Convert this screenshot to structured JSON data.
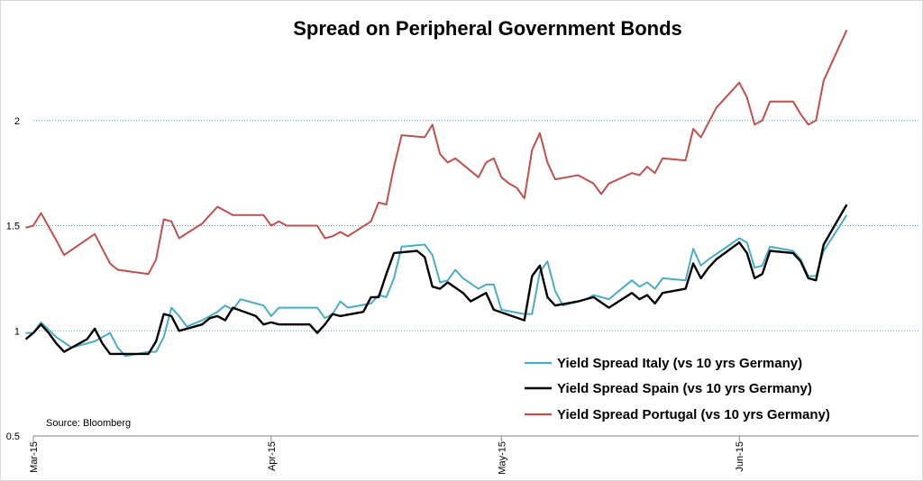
{
  "chart_data": {
    "type": "line",
    "title": "Spread on Peripheral Government Bonds",
    "source": "Source: Bloomberg",
    "ylim": [
      0.5,
      2.5
    ],
    "yticks": [
      {
        "value": 0.5,
        "label": "0.5"
      },
      {
        "value": 1,
        "label": "1"
      },
      {
        "value": 1.5,
        "label": "1.5"
      },
      {
        "value": 2,
        "label": "2"
      }
    ],
    "grid": "horizontal dotted at 1, 1.5, 2",
    "legend_position": "bottom-right",
    "xlim": [
      "2015-03-01",
      "2015-06-24"
    ],
    "xticks": [
      {
        "date": "2015-03-01",
        "label": "Mar-15"
      },
      {
        "date": "2015-04-01",
        "label": "Apr-15"
      },
      {
        "date": "2015-05-01",
        "label": "May-15"
      },
      {
        "date": "2015-06-01",
        "label": "Jun-15"
      }
    ],
    "series": [
      {
        "name": "Yield Spread Italy (vs 10 yrs Germany)",
        "color": "#4bacc6",
        "points": [
          [
            "2015-02-28",
            0.99
          ],
          [
            "2015-03-01",
            0.99
          ],
          [
            "2015-03-02",
            1.04
          ],
          [
            "2015-03-04",
            0.97
          ],
          [
            "2015-03-06",
            0.92
          ],
          [
            "2015-03-09",
            0.95
          ],
          [
            "2015-03-10",
            0.97
          ],
          [
            "2015-03-11",
            0.99
          ],
          [
            "2015-03-12",
            0.92
          ],
          [
            "2015-03-13",
            0.88
          ],
          [
            "2015-03-16",
            0.9
          ],
          [
            "2015-03-17",
            0.9
          ],
          [
            "2015-03-18",
            0.97
          ],
          [
            "2015-03-19",
            1.11
          ],
          [
            "2015-03-20",
            1.07
          ],
          [
            "2015-03-21",
            1.02
          ],
          [
            "2015-03-23",
            1.05
          ],
          [
            "2015-03-24",
            1.07
          ],
          [
            "2015-03-25",
            1.09
          ],
          [
            "2015-03-26",
            1.12
          ],
          [
            "2015-03-27",
            1.1
          ],
          [
            "2015-03-28",
            1.15
          ],
          [
            "2015-03-30",
            1.13
          ],
          [
            "2015-03-31",
            1.12
          ],
          [
            "2015-04-01",
            1.07
          ],
          [
            "2015-04-02",
            1.11
          ],
          [
            "2015-04-03",
            1.11
          ],
          [
            "2015-04-06",
            1.11
          ],
          [
            "2015-04-07",
            1.11
          ],
          [
            "2015-04-08",
            1.06
          ],
          [
            "2015-04-09",
            1.08
          ],
          [
            "2015-04-10",
            1.14
          ],
          [
            "2015-04-11",
            1.11
          ],
          [
            "2015-04-14",
            1.13
          ],
          [
            "2015-04-15",
            1.17
          ],
          [
            "2015-04-16",
            1.16
          ],
          [
            "2015-04-17",
            1.25
          ],
          [
            "2015-04-18",
            1.4
          ],
          [
            "2015-04-21",
            1.41
          ],
          [
            "2015-04-22",
            1.36
          ],
          [
            "2015-04-23",
            1.23
          ],
          [
            "2015-04-24",
            1.24
          ],
          [
            "2015-04-25",
            1.29
          ],
          [
            "2015-04-26",
            1.25
          ],
          [
            "2015-04-28",
            1.2
          ],
          [
            "2015-04-29",
            1.22
          ],
          [
            "2015-04-30",
            1.22
          ],
          [
            "2015-05-01",
            1.1
          ],
          [
            "2015-05-04",
            1.08
          ],
          [
            "2015-05-05",
            1.08
          ],
          [
            "2015-05-06",
            1.28
          ],
          [
            "2015-05-07",
            1.33
          ],
          [
            "2015-05-08",
            1.19
          ],
          [
            "2015-05-09",
            1.12
          ],
          [
            "2015-05-12",
            1.15
          ],
          [
            "2015-05-13",
            1.17
          ],
          [
            "2015-05-14",
            1.16
          ],
          [
            "2015-05-15",
            1.15
          ],
          [
            "2015-05-18",
            1.24
          ],
          [
            "2015-05-19",
            1.21
          ],
          [
            "2015-05-20",
            1.23
          ],
          [
            "2015-05-21",
            1.2
          ],
          [
            "2015-05-22",
            1.25
          ],
          [
            "2015-05-25",
            1.24
          ],
          [
            "2015-05-26",
            1.39
          ],
          [
            "2015-05-27",
            1.31
          ],
          [
            "2015-05-28",
            1.34
          ],
          [
            "2015-05-30",
            1.39
          ],
          [
            "2015-06-01",
            1.44
          ],
          [
            "2015-06-02",
            1.42
          ],
          [
            "2015-06-03",
            1.3
          ],
          [
            "2015-06-04",
            1.31
          ],
          [
            "2015-06-05",
            1.4
          ],
          [
            "2015-06-08",
            1.38
          ],
          [
            "2015-06-09",
            1.34
          ],
          [
            "2015-06-10",
            1.26
          ],
          [
            "2015-06-11",
            1.26
          ],
          [
            "2015-06-12",
            1.38
          ],
          [
            "2015-06-15",
            1.55
          ]
        ]
      },
      {
        "name": "Yield Spread Spain (vs 10 yrs Germany)",
        "color": "#000000",
        "points": [
          [
            "2015-02-28",
            0.96
          ],
          [
            "2015-03-01",
            0.99
          ],
          [
            "2015-03-02",
            1.03
          ],
          [
            "2015-03-03",
            0.99
          ],
          [
            "2015-03-04",
            0.94
          ],
          [
            "2015-03-05",
            0.9
          ],
          [
            "2015-03-08",
            0.96
          ],
          [
            "2015-03-09",
            1.01
          ],
          [
            "2015-03-10",
            0.94
          ],
          [
            "2015-03-11",
            0.89
          ],
          [
            "2015-03-16",
            0.89
          ],
          [
            "2015-03-17",
            0.95
          ],
          [
            "2015-03-18",
            1.08
          ],
          [
            "2015-03-19",
            1.07
          ],
          [
            "2015-03-20",
            1.0
          ],
          [
            "2015-03-23",
            1.03
          ],
          [
            "2015-03-24",
            1.06
          ],
          [
            "2015-03-25",
            1.07
          ],
          [
            "2015-03-26",
            1.05
          ],
          [
            "2015-03-27",
            1.11
          ],
          [
            "2015-03-30",
            1.07
          ],
          [
            "2015-03-31",
            1.03
          ],
          [
            "2015-04-01",
            1.04
          ],
          [
            "2015-04-02",
            1.03
          ],
          [
            "2015-04-06",
            1.03
          ],
          [
            "2015-04-07",
            0.99
          ],
          [
            "2015-04-08",
            1.03
          ],
          [
            "2015-04-09",
            1.08
          ],
          [
            "2015-04-10",
            1.07
          ],
          [
            "2015-04-13",
            1.09
          ],
          [
            "2015-04-14",
            1.16
          ],
          [
            "2015-04-15",
            1.16
          ],
          [
            "2015-04-16",
            1.27
          ],
          [
            "2015-04-17",
            1.37
          ],
          [
            "2015-04-20",
            1.38
          ],
          [
            "2015-04-21",
            1.35
          ],
          [
            "2015-04-22",
            1.21
          ],
          [
            "2015-04-23",
            1.2
          ],
          [
            "2015-04-24",
            1.23
          ],
          [
            "2015-04-26",
            1.18
          ],
          [
            "2015-04-27",
            1.14
          ],
          [
            "2015-04-29",
            1.18
          ],
          [
            "2015-04-30",
            1.1
          ],
          [
            "2015-05-04",
            1.05
          ],
          [
            "2015-05-05",
            1.26
          ],
          [
            "2015-05-06",
            1.31
          ],
          [
            "2015-05-07",
            1.16
          ],
          [
            "2015-05-08",
            1.12
          ],
          [
            "2015-05-11",
            1.14
          ],
          [
            "2015-05-13",
            1.16
          ],
          [
            "2015-05-15",
            1.11
          ],
          [
            "2015-05-18",
            1.18
          ],
          [
            "2015-05-19",
            1.15
          ],
          [
            "2015-05-20",
            1.17
          ],
          [
            "2015-05-21",
            1.13
          ],
          [
            "2015-05-22",
            1.18
          ],
          [
            "2015-05-25",
            1.2
          ],
          [
            "2015-05-26",
            1.32
          ],
          [
            "2015-05-27",
            1.25
          ],
          [
            "2015-05-28",
            1.3
          ],
          [
            "2015-05-29",
            1.34
          ],
          [
            "2015-06-01",
            1.42
          ],
          [
            "2015-06-02",
            1.37
          ],
          [
            "2015-06-03",
            1.25
          ],
          [
            "2015-06-04",
            1.27
          ],
          [
            "2015-06-05",
            1.38
          ],
          [
            "2015-06-08",
            1.37
          ],
          [
            "2015-06-09",
            1.33
          ],
          [
            "2015-06-10",
            1.25
          ],
          [
            "2015-06-11",
            1.24
          ],
          [
            "2015-06-12",
            1.41
          ],
          [
            "2015-06-15",
            1.6
          ]
        ]
      },
      {
        "name": "Yield Spread Portugal (vs 10 yrs Germany)",
        "color": "#c0504d",
        "points": [
          [
            "2015-02-28",
            1.49
          ],
          [
            "2015-03-01",
            1.5
          ],
          [
            "2015-03-02",
            1.56
          ],
          [
            "2015-03-04",
            1.43
          ],
          [
            "2015-03-05",
            1.36
          ],
          [
            "2015-03-09",
            1.46
          ],
          [
            "2015-03-10",
            1.39
          ],
          [
            "2015-03-11",
            1.32
          ],
          [
            "2015-03-12",
            1.29
          ],
          [
            "2015-03-16",
            1.27
          ],
          [
            "2015-03-17",
            1.34
          ],
          [
            "2015-03-18",
            1.53
          ],
          [
            "2015-03-19",
            1.52
          ],
          [
            "2015-03-20",
            1.44
          ],
          [
            "2015-03-23",
            1.51
          ],
          [
            "2015-03-25",
            1.59
          ],
          [
            "2015-03-27",
            1.55
          ],
          [
            "2015-03-31",
            1.55
          ],
          [
            "2015-04-01",
            1.5
          ],
          [
            "2015-04-02",
            1.52
          ],
          [
            "2015-04-03",
            1.5
          ],
          [
            "2015-04-07",
            1.5
          ],
          [
            "2015-04-08",
            1.44
          ],
          [
            "2015-04-09",
            1.45
          ],
          [
            "2015-04-10",
            1.47
          ],
          [
            "2015-04-11",
            1.45
          ],
          [
            "2015-04-14",
            1.52
          ],
          [
            "2015-04-15",
            1.61
          ],
          [
            "2015-04-16",
            1.6
          ],
          [
            "2015-04-17",
            1.78
          ],
          [
            "2015-04-18",
            1.93
          ],
          [
            "2015-04-21",
            1.92
          ],
          [
            "2015-04-22",
            1.98
          ],
          [
            "2015-04-23",
            1.84
          ],
          [
            "2015-04-24",
            1.8
          ],
          [
            "2015-04-25",
            1.82
          ],
          [
            "2015-04-28",
            1.73
          ],
          [
            "2015-04-29",
            1.8
          ],
          [
            "2015-04-30",
            1.82
          ],
          [
            "2015-05-01",
            1.73
          ],
          [
            "2015-05-02",
            1.7
          ],
          [
            "2015-05-03",
            1.68
          ],
          [
            "2015-05-04",
            1.63
          ],
          [
            "2015-05-05",
            1.86
          ],
          [
            "2015-05-06",
            1.94
          ],
          [
            "2015-05-07",
            1.8
          ],
          [
            "2015-05-08",
            1.72
          ],
          [
            "2015-05-11",
            1.74
          ],
          [
            "2015-05-13",
            1.7
          ],
          [
            "2015-05-14",
            1.65
          ],
          [
            "2015-05-15",
            1.7
          ],
          [
            "2015-05-18",
            1.75
          ],
          [
            "2015-05-19",
            1.74
          ],
          [
            "2015-05-20",
            1.78
          ],
          [
            "2015-05-21",
            1.75
          ],
          [
            "2015-05-22",
            1.82
          ],
          [
            "2015-05-25",
            1.81
          ],
          [
            "2015-05-26",
            1.96
          ],
          [
            "2015-05-27",
            1.92
          ],
          [
            "2015-05-28",
            1.99
          ],
          [
            "2015-05-29",
            2.06
          ],
          [
            "2015-06-01",
            2.18
          ],
          [
            "2015-06-02",
            2.11
          ],
          [
            "2015-06-03",
            1.98
          ],
          [
            "2015-06-04",
            2.0
          ],
          [
            "2015-06-05",
            2.09
          ],
          [
            "2015-06-08",
            2.09
          ],
          [
            "2015-06-09",
            2.03
          ],
          [
            "2015-06-10",
            1.98
          ],
          [
            "2015-06-11",
            2.0
          ],
          [
            "2015-06-12",
            2.19
          ],
          [
            "2015-06-15",
            2.43
          ]
        ]
      }
    ]
  }
}
